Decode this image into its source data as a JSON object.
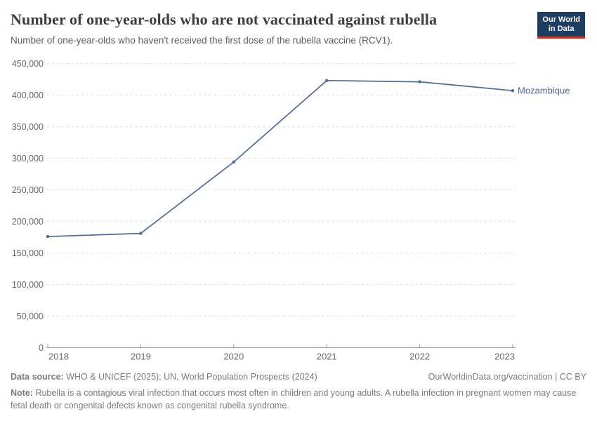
{
  "header": {
    "logo": {
      "line1": "Our World",
      "line2": "in Data"
    }
  },
  "chart_data": {
    "type": "line",
    "title": "Number of one-year-olds who are not vaccinated against rubella",
    "subtitle": "Number of one-year-olds who haven't received the first dose of the rubella vaccine (RCV1).",
    "x": [
      2018,
      2019,
      2020,
      2021,
      2022,
      2023
    ],
    "xtick_labels": [
      "2018",
      "2019",
      "2020",
      "2021",
      "2022",
      "2023"
    ],
    "series": [
      {
        "name": "Mozambique",
        "color": "#4C6A9C",
        "values": [
          176000,
          181000,
          294000,
          423000,
          421000,
          407000
        ]
      }
    ],
    "ylim": [
      0,
      450000
    ],
    "yticks": [
      0,
      50000,
      100000,
      150000,
      200000,
      250000,
      300000,
      350000,
      400000,
      450000
    ],
    "ytick_labels": [
      "0",
      "50,000",
      "100,000",
      "150,000",
      "200,000",
      "250,000",
      "300,000",
      "350,000",
      "400,000",
      "450,000"
    ],
    "grid": "horizontal-dashed",
    "legend": "inline-end-label",
    "markers": true
  },
  "footer": {
    "source_label": "Data source:",
    "source_text": "WHO & UNICEF (2025); UN, World Population Prospects (2024)",
    "license": "OurWorldinData.org/vaccination | CC BY",
    "note_label": "Note:",
    "note_text": "Rubella is a contagious viral infection that occurs most often in children and young adults. A rubella infection in pregnant women may cause fetal death or congenital defects known as congenital rubella syndrome."
  },
  "colors": {
    "series_blue": "#4C6A9C",
    "logo_background": "#1d3d63",
    "logo_red": "#cb3325",
    "gridline": "#dcdcdc",
    "axis": "#999999",
    "tick_label": "#686868",
    "title": "#3a3f44",
    "subtitle": "#5b5b5b",
    "footer": "#7b7b7b"
  }
}
